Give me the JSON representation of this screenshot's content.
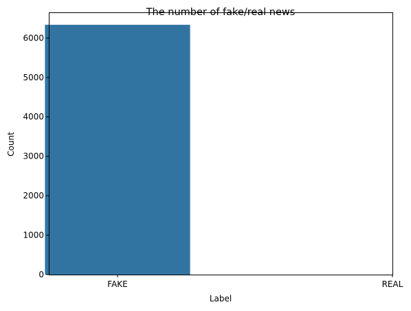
{
  "chart_data": {
    "type": "bar",
    "title": "The number of fake/real news",
    "xlabel": "Label",
    "ylabel": "Count",
    "categories": [
      "FAKE",
      "REAL"
    ],
    "values": [
      6335,
      0
    ],
    "ylim": [
      0,
      6650
    ],
    "yticks": [
      0,
      1000,
      2000,
      3000,
      4000,
      5000,
      6000
    ],
    "grid": false,
    "legend": "none",
    "colors": {
      "bar": "#3274a1",
      "axis": "#000000",
      "background": "#ffffff"
    }
  }
}
